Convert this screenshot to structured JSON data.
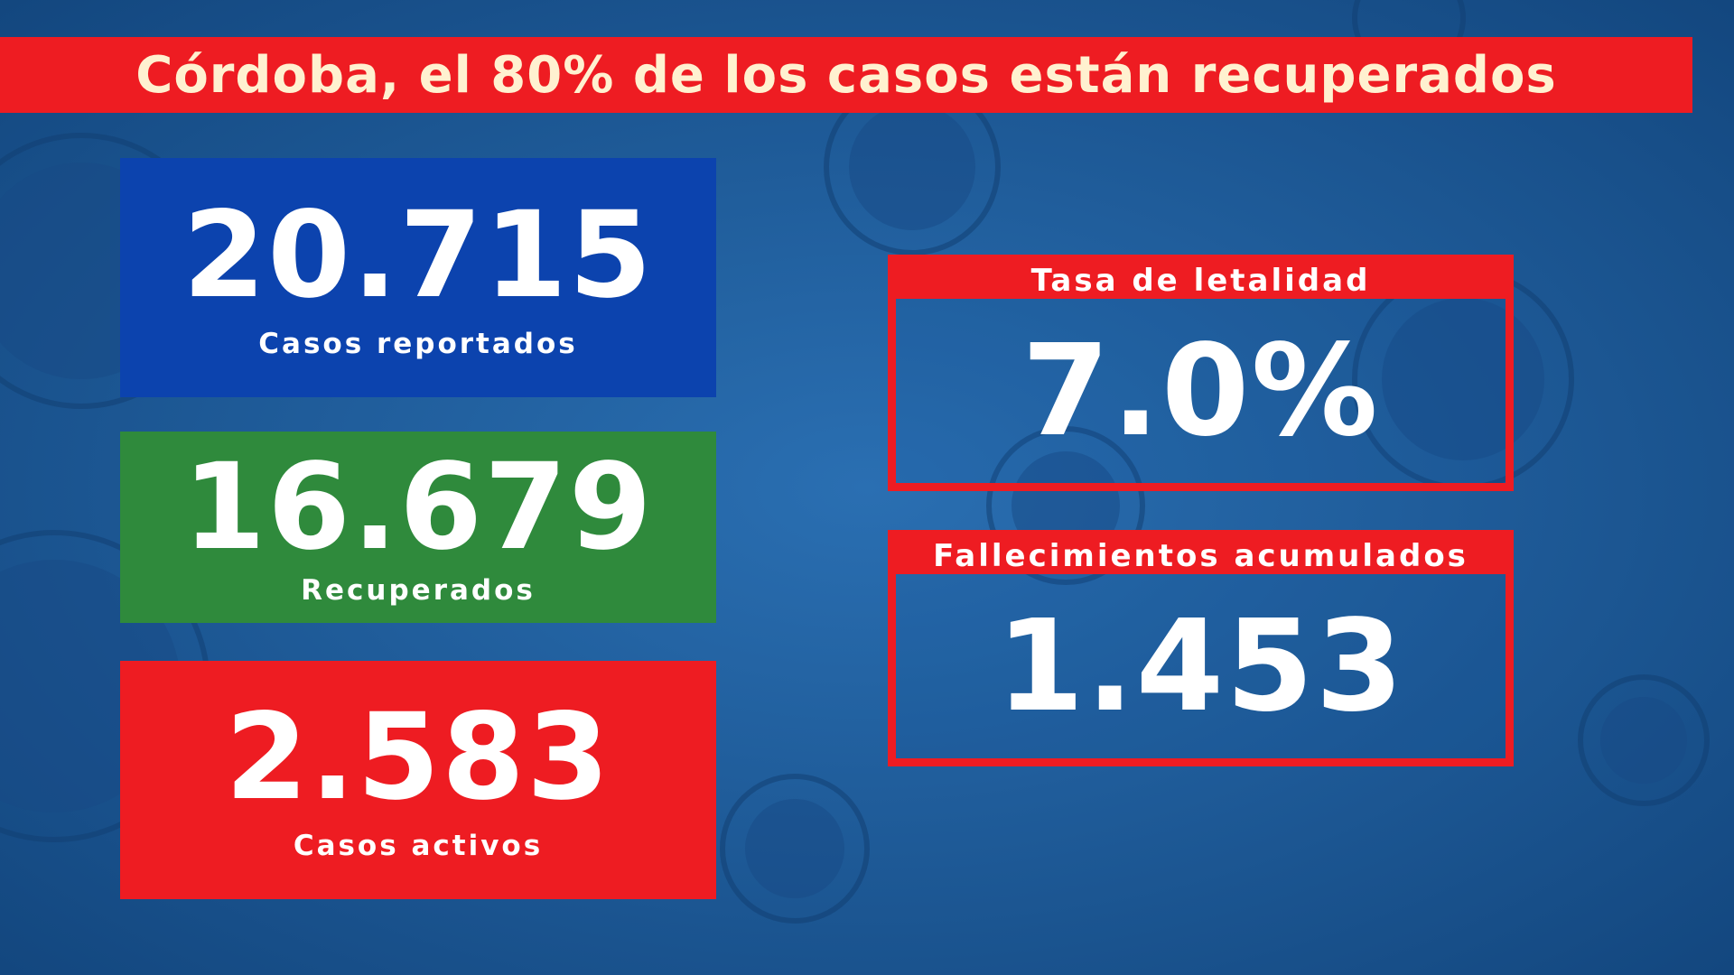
{
  "title": "Córdoba, el 80% de los casos están recuperados",
  "colors": {
    "background": "#1d5a9a",
    "red": "#ee1c22",
    "blue": "#0c43ae",
    "green": "#2f8a3c",
    "title_text": "#fff1d0"
  },
  "cards": {
    "reported": {
      "value": "20.715",
      "label": "Casos reportados"
    },
    "recovered": {
      "value": "16.679",
      "label": "Recuperados"
    },
    "active": {
      "value": "2.583",
      "label": "Casos activos"
    }
  },
  "stats": {
    "fatality_rate": {
      "label": "Tasa de letalidad",
      "value": "7.0%"
    },
    "deaths": {
      "label": "Fallecimientos acumulados",
      "value": "1.453"
    }
  }
}
